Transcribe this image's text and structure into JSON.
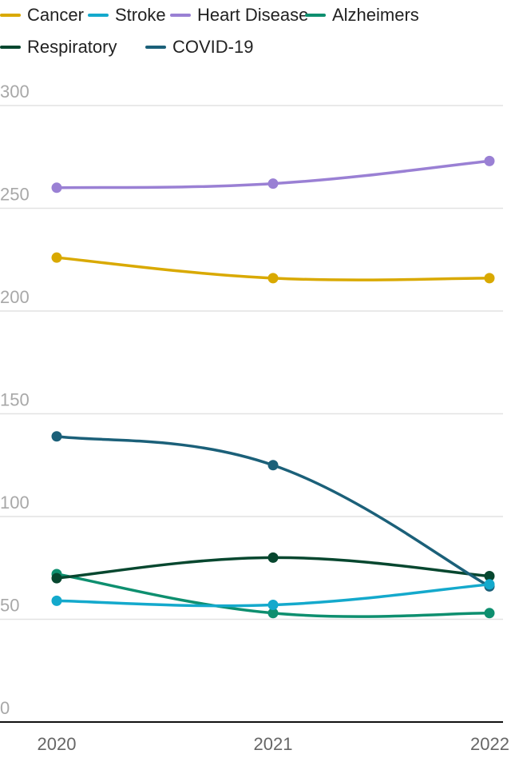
{
  "chart_data": {
    "type": "line",
    "title": "",
    "xlabel": "",
    "ylabel": "",
    "x": [
      "2020",
      "2021",
      "2022"
    ],
    "ylim": [
      0,
      300
    ],
    "yticks": [
      0,
      50,
      100,
      150,
      200,
      250,
      300
    ],
    "grid": true,
    "legend_position": "top",
    "series": [
      {
        "name": "Cancer",
        "color": "#d9a900",
        "values": [
          226,
          216,
          216
        ]
      },
      {
        "name": "Stroke",
        "color": "#14a9cc",
        "values": [
          59,
          57,
          67
        ]
      },
      {
        "name": "Heart Disease",
        "color": "#9a80d4",
        "values": [
          260,
          262,
          273
        ]
      },
      {
        "name": "Alzheimers",
        "color": "#0e8f6f",
        "values": [
          72,
          53,
          53
        ]
      },
      {
        "name": "Respiratory",
        "color": "#07472f",
        "values": [
          70,
          80,
          71
        ]
      },
      {
        "name": "COVID-19",
        "color": "#1b6079",
        "values": [
          139,
          125,
          66
        ]
      }
    ]
  },
  "legend": {
    "items": [
      {
        "label": "Cancer",
        "color": "#d9a900"
      },
      {
        "label": "Stroke",
        "color": "#14a9cc"
      },
      {
        "label": "Heart Disease",
        "color": "#9a80d4"
      },
      {
        "label": "Alzheimers",
        "color": "#0e8f6f"
      },
      {
        "label": "Respiratory",
        "color": "#07472f"
      },
      {
        "label": "COVID-19",
        "color": "#1b6079"
      }
    ]
  }
}
